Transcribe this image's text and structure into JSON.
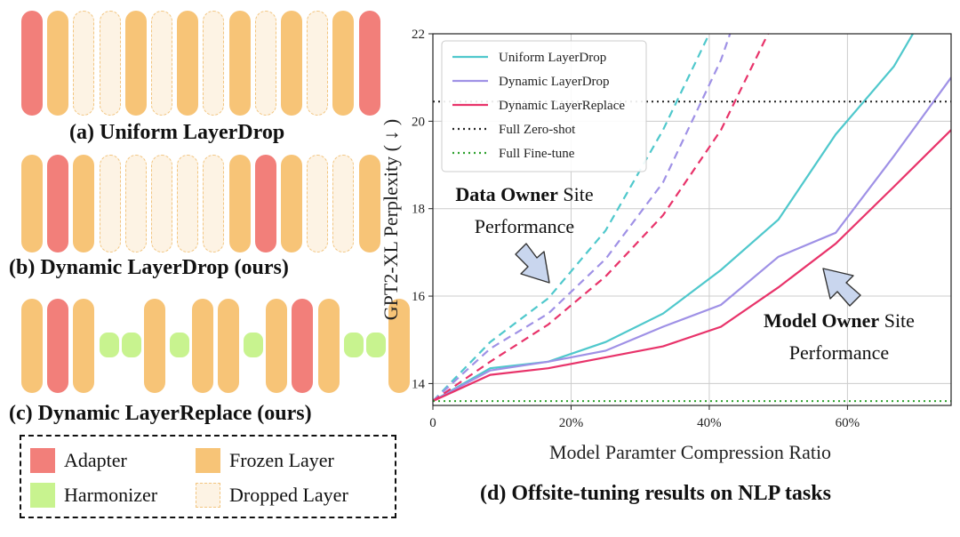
{
  "left_panel": {
    "captions": {
      "a": "(a) Uniform LayerDrop",
      "b": "(b) Dynamic LayerDrop (ours)",
      "c": "(c) Dynamic LayerReplace (ours)"
    },
    "rows": {
      "a": [
        "adapter",
        "frozen",
        "dropped",
        "dropped",
        "frozen",
        "dropped",
        "frozen",
        "dropped",
        "frozen",
        "dropped",
        "frozen",
        "dropped",
        "frozen",
        "adapter"
      ],
      "b": [
        "frozen",
        "adapter",
        "frozen",
        "dropped",
        "dropped",
        "dropped",
        "dropped",
        "dropped",
        "frozen",
        "adapter",
        "frozen",
        "dropped",
        "dropped",
        "frozen"
      ],
      "c": [
        "frozen",
        "adapter",
        "frozen",
        "harmonizer",
        "harmonizer",
        "frozen",
        "harmonizer",
        "frozen",
        "frozen",
        "harmonizer",
        "frozen",
        "adapter",
        "frozen",
        "harmonizer",
        "harmonizer",
        "frozen"
      ]
    },
    "legend": {
      "adapter": "Adapter",
      "frozen": "Frozen Layer",
      "harmonizer": "Harmonizer",
      "dropped": "Dropped Layer"
    },
    "colors": {
      "adapter": "#f27f7a",
      "frozen": "#f7c477",
      "harmonizer": "#c8f38f",
      "dropped": "#fdf3e4"
    }
  },
  "chart_data": {
    "type": "line",
    "title": "(d) Offsite-tuning results on NLP tasks",
    "xlabel": "Model Paramter Compression Ratio",
    "ylabel": "GPT2-XL Perplexity ( ↓ )",
    "xlim": [
      0,
      0.75
    ],
    "ylim": [
      13.5,
      22
    ],
    "xticks": [
      0,
      0.2,
      0.4,
      0.6
    ],
    "xtick_labels": [
      "0",
      "20%",
      "40%",
      "60%"
    ],
    "yticks": [
      14,
      16,
      18,
      20,
      22
    ],
    "ytick_labels": [
      "14",
      "16",
      "18",
      "20",
      "22"
    ],
    "grid": true,
    "legend_position": "top-left",
    "series": [
      {
        "name": "Uniform LayerDrop",
        "color": "#4fc8cc",
        "style": "solid",
        "x": [
          0,
          0.083,
          0.167,
          0.25,
          0.333,
          0.417,
          0.5,
          0.583,
          0.667,
          0.75
        ],
        "y": [
          13.6,
          14.35,
          14.5,
          14.95,
          15.6,
          16.6,
          17.75,
          19.7,
          21.25,
          23.5
        ]
      },
      {
        "name": "Dynamic LayerDrop",
        "color": "#9f91e6",
        "style": "solid",
        "x": [
          0,
          0.083,
          0.167,
          0.25,
          0.333,
          0.417,
          0.5,
          0.583,
          0.667,
          0.75
        ],
        "y": [
          13.6,
          14.3,
          14.5,
          14.75,
          15.3,
          15.8,
          16.9,
          17.45,
          19.2,
          21.0
        ]
      },
      {
        "name": "Dynamic LayerReplace",
        "color": "#e8336a",
        "style": "solid",
        "x": [
          0,
          0.083,
          0.167,
          0.25,
          0.333,
          0.417,
          0.5,
          0.583,
          0.667,
          0.75
        ],
        "y": [
          13.6,
          14.2,
          14.35,
          14.6,
          14.85,
          15.3,
          16.2,
          17.2,
          18.5,
          19.8
        ]
      },
      {
        "name": "",
        "color": "#4fc8cc",
        "style": "dashed",
        "x": [
          0,
          0.083,
          0.167,
          0.25,
          0.333,
          0.4
        ],
        "y": [
          13.6,
          14.95,
          15.95,
          17.5,
          19.8,
          22.0
        ]
      },
      {
        "name": "",
        "color": "#9f91e6",
        "style": "dashed",
        "x": [
          0,
          0.083,
          0.167,
          0.25,
          0.333,
          0.417,
          0.43
        ],
        "y": [
          13.6,
          14.8,
          15.6,
          16.85,
          18.6,
          21.4,
          22.0
        ]
      },
      {
        "name": "",
        "color": "#e8336a",
        "style": "dashed",
        "x": [
          0,
          0.083,
          0.167,
          0.25,
          0.333,
          0.417,
          0.485
        ],
        "y": [
          13.6,
          14.5,
          15.35,
          16.45,
          17.85,
          19.8,
          22.0
        ]
      },
      {
        "name": "Full Zero-shot",
        "color": "#222222",
        "style": "dotted",
        "x": [
          0,
          0.75
        ],
        "y": [
          20.45,
          20.45
        ]
      },
      {
        "name": "Full Fine-tune",
        "color": "#2ca02c",
        "style": "dotted",
        "x": [
          0,
          0.75
        ],
        "y": [
          13.6,
          13.6
        ]
      }
    ],
    "annotations": [
      {
        "bold": "Data Owner",
        "rest": " Site",
        "line2": "Performance"
      },
      {
        "bold": "Model Owner",
        "rest": " Site",
        "line2": "Performance"
      }
    ]
  }
}
